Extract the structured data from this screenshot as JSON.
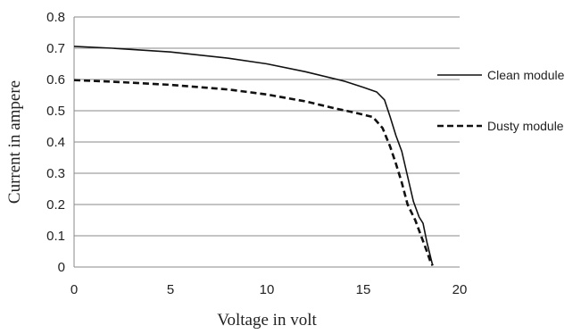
{
  "chart_data": {
    "type": "line",
    "xlabel": "Voltage in volt",
    "ylabel": "Current in ampere",
    "xlim": [
      0,
      20
    ],
    "ylim": [
      0,
      0.8
    ],
    "x_ticks": [
      "0",
      "5",
      "10",
      "15",
      "20"
    ],
    "y_ticks": [
      "0",
      "0.1",
      "0.2",
      "0.3",
      "0.4",
      "0.5",
      "0.6",
      "0.7",
      "0.8"
    ],
    "grid": "horizontal",
    "legend_position": "right",
    "series": [
      {
        "name": "Clean module",
        "style": "solid",
        "color": "#111111",
        "points": [
          [
            0,
            0.706
          ],
          [
            2,
            0.7
          ],
          [
            5,
            0.688
          ],
          [
            8,
            0.668
          ],
          [
            10,
            0.65
          ],
          [
            12,
            0.625
          ],
          [
            14,
            0.595
          ],
          [
            15,
            0.575
          ],
          [
            15.7,
            0.56
          ],
          [
            16.1,
            0.535
          ],
          [
            16.4,
            0.48
          ],
          [
            16.7,
            0.42
          ],
          [
            17.0,
            0.37
          ],
          [
            17.3,
            0.29
          ],
          [
            17.6,
            0.21
          ],
          [
            17.9,
            0.16
          ],
          [
            18.1,
            0.14
          ],
          [
            18.3,
            0.08
          ],
          [
            18.5,
            0.03
          ],
          [
            18.6,
            0.005
          ]
        ]
      },
      {
        "name": "Dusty module",
        "style": "dashed",
        "color": "#111111",
        "points": [
          [
            0,
            0.598
          ],
          [
            2,
            0.593
          ],
          [
            5,
            0.583
          ],
          [
            8,
            0.568
          ],
          [
            10,
            0.552
          ],
          [
            12,
            0.53
          ],
          [
            13.5,
            0.508
          ],
          [
            14.5,
            0.495
          ],
          [
            15.5,
            0.48
          ],
          [
            16.0,
            0.445
          ],
          [
            16.4,
            0.385
          ],
          [
            16.7,
            0.33
          ],
          [
            17.0,
            0.27
          ],
          [
            17.3,
            0.2
          ],
          [
            17.7,
            0.15
          ],
          [
            18.0,
            0.1
          ],
          [
            18.3,
            0.05
          ],
          [
            18.5,
            0.015
          ],
          [
            18.6,
            0.005
          ]
        ]
      }
    ]
  }
}
